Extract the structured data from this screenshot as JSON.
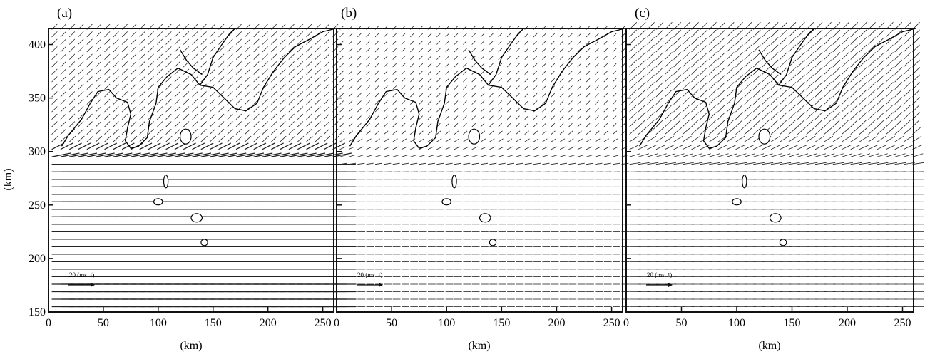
{
  "figure": {
    "ylabel": "(km)",
    "xlabel": "(km)"
  },
  "chart_data": [
    {
      "type": "vector field",
      "panel_label": "(a)",
      "xlim": [
        0,
        260
      ],
      "ylim": [
        150,
        415
      ],
      "xticks": [
        0,
        50,
        100,
        150,
        200,
        250
      ],
      "yticks": [
        150,
        200,
        250,
        300,
        350,
        400
      ],
      "x_tick_labels": [
        "0",
        "50",
        "100",
        "150",
        "200",
        "250"
      ],
      "y_tick_labels": [
        "150",
        "200",
        "250",
        "300",
        "350",
        "400"
      ],
      "xlabel": "(km)",
      "ylabel": "(km)",
      "reference_vector": {
        "label": "20 (ms⁻¹)",
        "speed": 20
      },
      "flow": {
        "south_speed": 18,
        "north_speed": 6,
        "south_direction": "east",
        "north_direction": "northeast",
        "transition_y": [
          290,
          310
        ]
      },
      "coastline_color": "#000000",
      "grid": false
    },
    {
      "type": "vector field",
      "panel_label": "(b)",
      "xlim": [
        0,
        260
      ],
      "ylim": [
        150,
        415
      ],
      "xticks": [
        0,
        50,
        100,
        150,
        200,
        250
      ],
      "yticks": [
        150,
        200,
        250,
        300,
        350,
        400
      ],
      "x_tick_labels": [
        "0",
        "50",
        "100",
        "150",
        "200",
        "250"
      ],
      "y_tick_labels": [
        "",
        "",
        "",
        "",
        "",
        ""
      ],
      "xlabel": "(km)",
      "ylabel": "",
      "reference_vector": {
        "label": "20 (ms⁻¹)",
        "speed": 20
      },
      "flow": {
        "south_speed": 6,
        "north_speed": 4,
        "south_direction": "east",
        "north_direction": "northeast",
        "transition_y": [
          280,
          320
        ]
      },
      "coastline_color": "#000000",
      "grid": false
    },
    {
      "type": "vector field",
      "panel_label": "(c)",
      "xlim": [
        0,
        260
      ],
      "ylim": [
        150,
        415
      ],
      "xticks": [
        0,
        50,
        100,
        150,
        200,
        250
      ],
      "yticks": [
        150,
        200,
        250,
        300,
        350,
        400
      ],
      "x_tick_labels": [
        "0",
        "50",
        "100",
        "150",
        "200",
        "250"
      ],
      "y_tick_labels": [
        "",
        "",
        "",
        "",
        "",
        ""
      ],
      "xlabel": "(km)",
      "ylabel": "",
      "reference_vector": {
        "label": "20 (ms⁻¹)",
        "speed": 20
      },
      "flow": {
        "south_speed": 9,
        "north_speed": 8,
        "south_direction": "east",
        "north_direction": "northeast",
        "transition_y": [
          280,
          320
        ]
      },
      "coastline_color": "#000000",
      "grid": false
    }
  ]
}
